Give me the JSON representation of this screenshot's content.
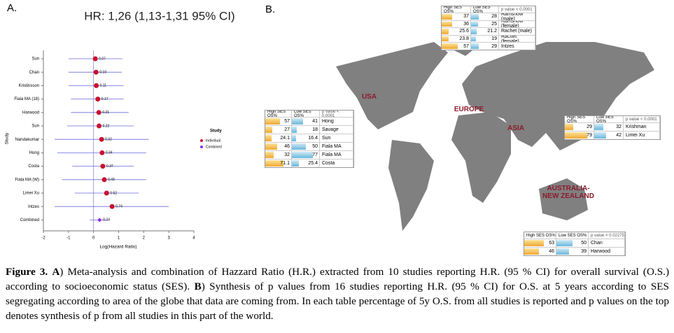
{
  "panel_a_label": "A.",
  "chart_data": {
    "type": "forest",
    "title": "HR: 1,26 (1,13-1,31 95% CI)",
    "x_label": "Log(Hazard Ratio)",
    "y_label": "Study",
    "categories": [
      "Sun",
      "Chan",
      "Kristinsson",
      "Fiala MA (18)",
      "Harwood",
      "Sun",
      "Nandakumar",
      "Hong",
      "Costa",
      "Fiala MA (W)",
      "Limei Xu",
      "Intzes",
      "Combined"
    ],
    "values": [
      0.07,
      0.1,
      0.11,
      0.17,
      0.21,
      0.22,
      0.32,
      0.34,
      0.37,
      0.43,
      0.52,
      0.74,
      0.24
    ],
    "value_labels": [
      "0.07",
      "0.10",
      "0.11",
      "0.17",
      "0.21",
      "0.22",
      "0.32",
      "0.34",
      "0.37",
      "0.43",
      "0.52",
      "0.74",
      "0.24"
    ],
    "ci_low": [
      -1.0,
      -1.0,
      -1.0,
      -0.9,
      -0.9,
      -1.05,
      -1.55,
      -1.45,
      -0.85,
      -1.25,
      -0.75,
      -1.55,
      -0.15
    ],
    "ci_high": [
      1.15,
      1.13,
      1.2,
      1.2,
      1.4,
      1.6,
      2.2,
      2.1,
      1.6,
      2.1,
      1.8,
      3.0,
      0.6
    ],
    "groups": [
      "Individual",
      "Individual",
      "Individual",
      "Individual",
      "Individual",
      "Individual",
      "Individual",
      "Individual",
      "Individual",
      "Individual",
      "Individual",
      "Individual",
      "Combined"
    ],
    "legend": {
      "title": "Study",
      "entries": [
        {
          "name": "Individual",
          "color": "#c8102e"
        },
        {
          "name": "Combined",
          "color": "#8a2be2"
        }
      ]
    },
    "ci_color": "#6a6ad8",
    "xlim": [
      -2,
      4
    ],
    "xticks": [
      -2,
      -1,
      0,
      1,
      2,
      3,
      4
    ]
  },
  "panel_b": {
    "label": "B.",
    "regions": [
      "USA",
      "EUROPE",
      "ASIA",
      "AUSTRALIA-NEW ZEALAND"
    ],
    "tables": [
      {
        "headers": [
          "High SES OS%",
          "Low SES OS%",
          "p value < 0.0001"
        ],
        "rows": [
          [
            37,
            28,
            "Ramshow (male)"
          ],
          [
            36,
            25,
            "Ramshow (female)"
          ],
          [
            25.6,
            21.2,
            "Rachet (male)"
          ],
          [
            23.8,
            19,
            "Rachet (female)"
          ],
          [
            57,
            29,
            "Intzes"
          ]
        ]
      },
      {
        "headers": [
          "High SES OS%",
          "Low SES OS%",
          "p value < 0.0001"
        ],
        "rows": [
          [
            57,
            41,
            "Hong"
          ],
          [
            27,
            18,
            "Savage"
          ],
          [
            24.1,
            16.4,
            "Sun"
          ],
          [
            46,
            50,
            "Fiala MA"
          ],
          [
            32,
            77,
            "Fiala MA"
          ],
          [
            71.1,
            25.4,
            "Costa"
          ]
        ]
      },
      {
        "headers": [
          "High SES OS%",
          "Low SES OS%",
          "p value < 0.0001"
        ],
        "rows": [
          [
            29,
            32,
            "Krishman"
          ],
          [
            79,
            42,
            "Limei Xu"
          ]
        ]
      },
      {
        "headers": [
          "High SES OS%",
          "Low SES OS%",
          "p value = 0.02275"
        ],
        "rows": [
          [
            63,
            50,
            "Chan"
          ],
          [
            46,
            39,
            "Harwood"
          ]
        ]
      }
    ]
  },
  "caption": {
    "figure": "Figure 3.",
    "a_mark": "A",
    "a_text": ") Meta-analysis and combination of Hazzard Ratio (H.R.) extracted from 10 studies reporting H.R. (95 % CI) for overall survival (O.S.) according to socioeconomic status (SES). ",
    "b_mark": "B",
    "b_text": ") Synthesis of p values from 16 studies reporting H.R. (95 % CI) for O.S. at 5 years according to SES segregating according to area of the globe that data are coming from. In each table percentage of 5y O.S. from all studies is reported and p values on the top denotes synthesis of p from all studies in this part of the world."
  }
}
